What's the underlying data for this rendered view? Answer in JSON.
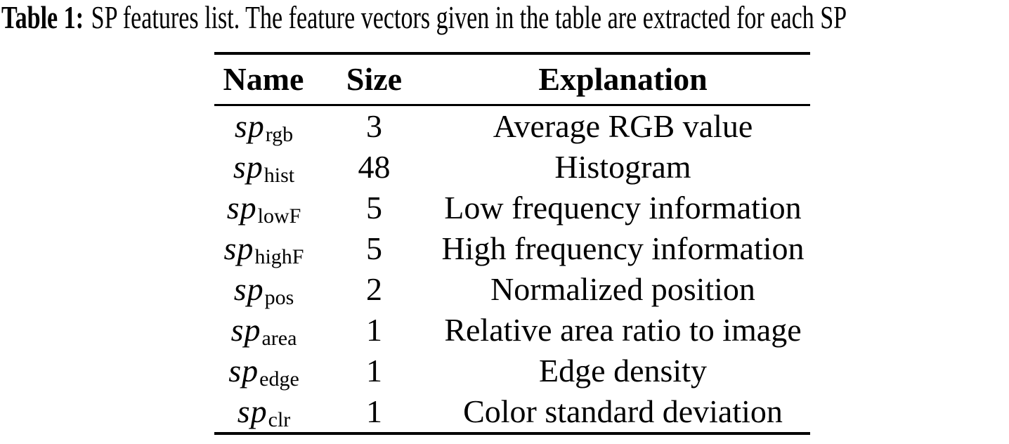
{
  "caption": {
    "label": "Table 1:",
    "text": "SP features list. The feature vectors given in the table are extracted for each SP"
  },
  "table": {
    "headers": {
      "name": "Name",
      "size": "Size",
      "explanation": "Explanation"
    },
    "rows": [
      {
        "var": "sp",
        "sub": "rgb",
        "size": "3",
        "explanation": "Average RGB value"
      },
      {
        "var": "sp",
        "sub": "hist",
        "size": "48",
        "explanation": "Histogram"
      },
      {
        "var": "sp",
        "sub": "lowF",
        "size": "5",
        "explanation": "Low frequency information"
      },
      {
        "var": "sp",
        "sub": "highF",
        "size": "5",
        "explanation": "High frequency information"
      },
      {
        "var": "sp",
        "sub": "pos",
        "size": "2",
        "explanation": "Normalized position"
      },
      {
        "var": "sp",
        "sub": "area",
        "size": "1",
        "explanation": "Relative area ratio to image"
      },
      {
        "var": "sp",
        "sub": "edge",
        "size": "1",
        "explanation": "Edge density"
      },
      {
        "var": "sp",
        "sub": "clr",
        "size": "1",
        "explanation": "Color standard deviation"
      }
    ],
    "text_color": "#000000",
    "rule_color": "#000000",
    "background": "#ffffff"
  }
}
